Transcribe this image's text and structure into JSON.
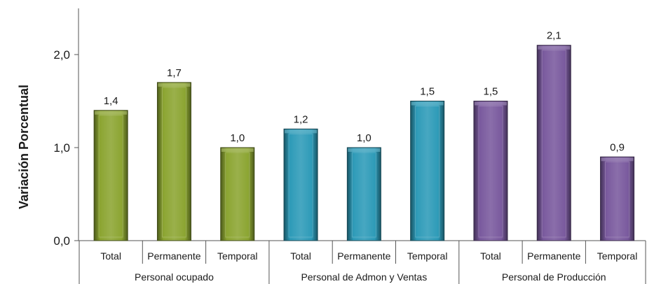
{
  "chart_data": {
    "type": "bar",
    "title": "",
    "ylabel": "Variación Porcentual",
    "xlabel": "",
    "ylim": [
      0.0,
      2.5
    ],
    "yticks": [
      "0,0",
      "1,0",
      "2,0"
    ],
    "ytick_values": [
      0,
      1,
      2
    ],
    "grid": false,
    "legend": "none",
    "groups": [
      {
        "name": "Personal ocupado",
        "color": "#8CA532",
        "categories": [
          "Total",
          "Permanente",
          "Temporal"
        ],
        "values": [
          1.4,
          1.7,
          1.0
        ],
        "labels": [
          "1,4",
          "1,7",
          "1,0"
        ]
      },
      {
        "name": "Personal de Admon y Ventas",
        "color": "#2E9BB8",
        "categories": [
          "Total",
          "Permanente",
          "Temporal"
        ],
        "values": [
          1.2,
          1.0,
          1.5
        ],
        "labels": [
          "1,2",
          "1,0",
          "1,5"
        ]
      },
      {
        "name": "Personal de Producción",
        "color": "#7A5A9E",
        "categories": [
          "Total",
          "Permanente",
          "Temporal"
        ],
        "values": [
          1.5,
          2.1,
          0.9
        ],
        "labels": [
          "1,5",
          "2,1",
          "0,9"
        ]
      }
    ]
  }
}
